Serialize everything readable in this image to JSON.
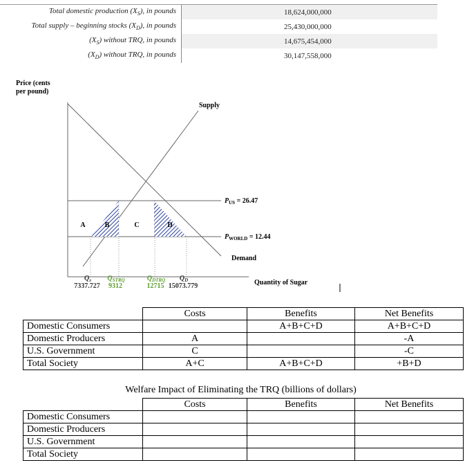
{
  "top_table": {
    "rows": [
      {
        "label": {
          "pre": "Total domestic production (X",
          "sub": "S",
          "post": "), in pounds"
        },
        "value": "18,624,000,000"
      },
      {
        "label": {
          "pre": "Total supply – beginning stocks (X",
          "sub": "D",
          "post": "), in pounds"
        },
        "value": "25,430,000,000"
      },
      {
        "label": {
          "pre": "(X",
          "sub": "S",
          "post": ") without TRQ, in pounds"
        },
        "value": "14,675,454,000"
      },
      {
        "label": {
          "pre": "(X",
          "sub": "D",
          "post": ") without TRQ, in pounds"
        },
        "value": "30,147,558,000"
      }
    ]
  },
  "diagram": {
    "y_label": [
      "Price (cents",
      "per pound)"
    ],
    "x_label": "Quantity of Sugar",
    "supply": "Supply",
    "demand": "Demand",
    "areas": [
      "A",
      "B",
      "C",
      "D"
    ],
    "p_us": {
      "main": "P",
      "sub": "US",
      "post": " = 26.47"
    },
    "p_world": {
      "main": "P",
      "sub": "WORLD",
      "post": " = 12.44"
    },
    "quantities": [
      {
        "main": "Q",
        "sub": "s",
        "value": "7337.727"
      },
      {
        "main": "Q",
        "sub": "STRQ",
        "value": "9312"
      },
      {
        "main": "Q",
        "sub": "DTRQ",
        "value": "12715"
      },
      {
        "main": "Q",
        "sub": "D",
        "value": "15073.779"
      }
    ]
  },
  "table1": {
    "header": [
      "Costs",
      "Benefits",
      "Net Benefits"
    ],
    "rows": [
      [
        "Domestic Consumers",
        "",
        "A+B+C+D",
        "A+B+C+D"
      ],
      [
        "Domestic Producers",
        "A",
        "",
        "-A"
      ],
      [
        "U.S. Government",
        "C",
        "",
        "-C"
      ],
      [
        "Total Society",
        "A+C",
        "A+B+C+D",
        "+B+D"
      ]
    ]
  },
  "table2": {
    "title": "Welfare Impact of Eliminating the TRQ (billions of dollars)",
    "header": [
      "Costs",
      "Benefits",
      "Net Benefits"
    ],
    "rows": [
      [
        "Domestic Consumers",
        "",
        "",
        ""
      ],
      [
        "Domestic Producers",
        "",
        "",
        ""
      ],
      [
        "U.S. Government",
        "",
        "",
        ""
      ],
      [
        "Total Society",
        "",
        "",
        ""
      ]
    ]
  }
}
